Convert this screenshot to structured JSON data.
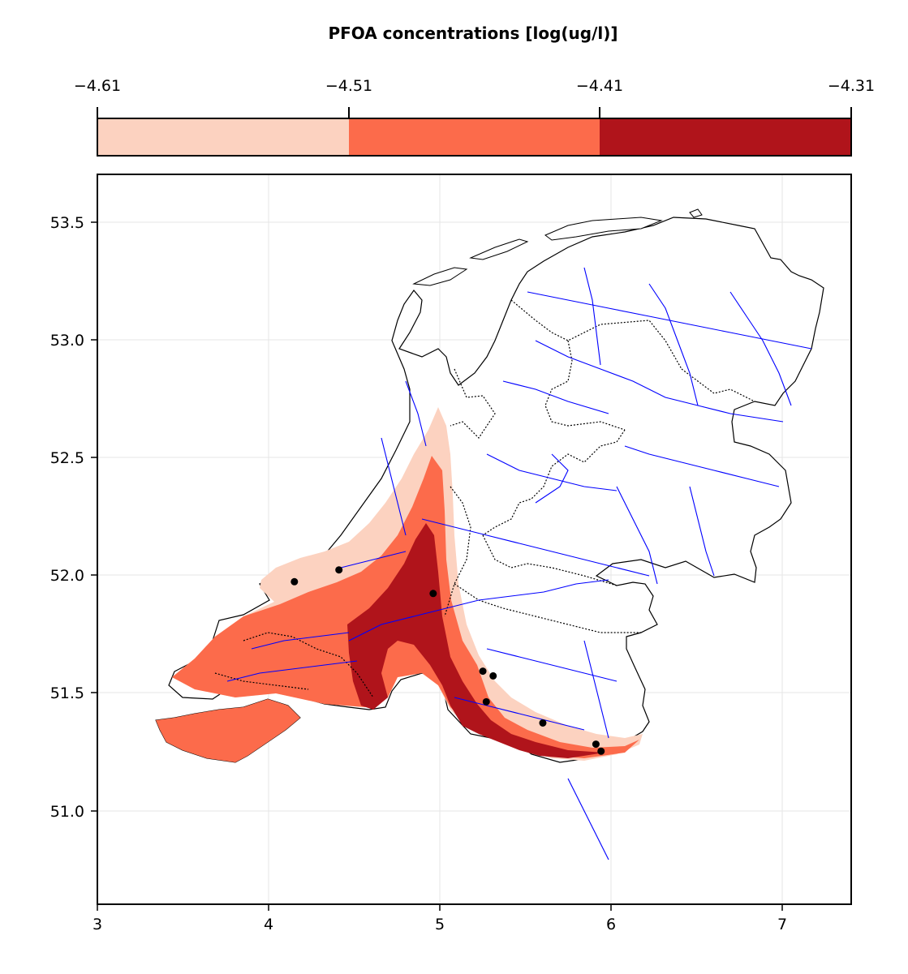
{
  "colorbar": {
    "title": "PFOA concentrations [log(ug/l)]",
    "ticks": [
      "−4.61",
      "−4.51",
      "−4.41",
      "−4.31"
    ],
    "levels": [
      -4.61,
      -4.51,
      -4.41,
      -4.31
    ],
    "colors": [
      "#fcd2c0",
      "#fc6b4b",
      "#b0141b"
    ]
  },
  "map": {
    "xlim": [
      3,
      7.4
    ],
    "ylim": [
      50.6,
      53.7
    ],
    "xticks": [
      "3",
      "4",
      "5",
      "6",
      "7"
    ],
    "yticks": [
      "51.0",
      "51.5",
      "52.0",
      "52.5",
      "53.0",
      "53.5"
    ],
    "grid": true,
    "border_color": "#000000",
    "province_border_style": "dotted",
    "river_color": "#0000ff",
    "sample_point_color": "#000000",
    "sample_points": [
      [
        4.15,
        51.97
      ],
      [
        4.41,
        52.02
      ],
      [
        4.96,
        51.92
      ],
      [
        5.25,
        51.59
      ],
      [
        5.31,
        51.57
      ],
      [
        5.27,
        51.46
      ],
      [
        5.6,
        51.37
      ],
      [
        5.91,
        51.28
      ],
      [
        5.94,
        51.25
      ]
    ]
  }
}
